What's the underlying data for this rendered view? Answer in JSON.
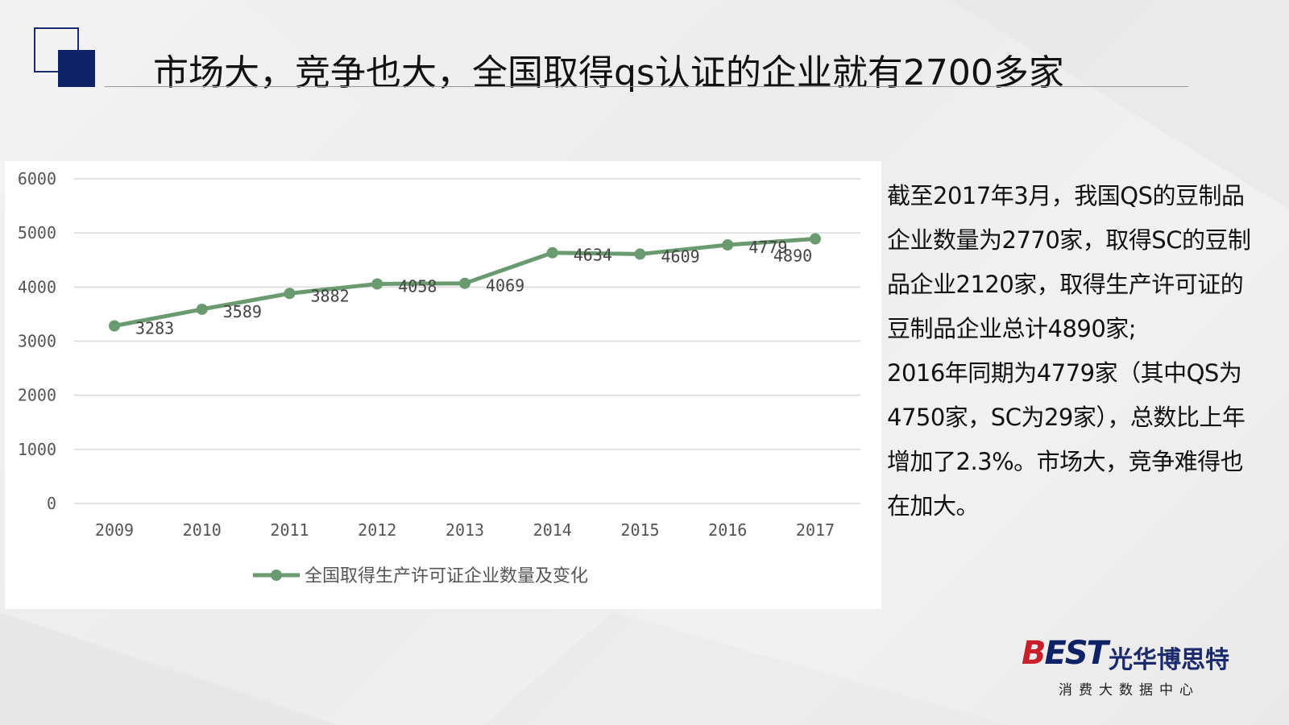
{
  "header": {
    "title": "市场大，竞争也大，全国取得qs认证的企业就有2700多家"
  },
  "chart_data": {
    "type": "line",
    "categories": [
      "2009",
      "2010",
      "2011",
      "2012",
      "2013",
      "2014",
      "2015",
      "2016",
      "2017"
    ],
    "series": [
      {
        "name": "全国取得生产许可证企业数量及变化",
        "values": [
          3283,
          3589,
          3882,
          4058,
          4069,
          4634,
          4609,
          4779,
          4890
        ],
        "color": "#6a9a70"
      }
    ],
    "y_ticks": [
      0,
      1000,
      2000,
      3000,
      4000,
      5000,
      6000
    ],
    "ylim": [
      0,
      6000
    ],
    "grid": true,
    "legend_position": "bottom"
  },
  "side_text": {
    "paragraph1": "截至2017年3月，我国QS的豆制品企业数量为2770家，取得SC的豆制品企业2120家，取得生产许可证的豆制品企业总计4890家;",
    "paragraph2": "2016年同期为4779家（其中QS为4750家，SC为29家），总数比上年增加了2.3%。市场大，竞争难得也在加大。"
  },
  "logo": {
    "mark_part1": "B",
    "mark_part2": "EST",
    "company": "光华博思特",
    "subtitle": "消费大数据中心"
  }
}
